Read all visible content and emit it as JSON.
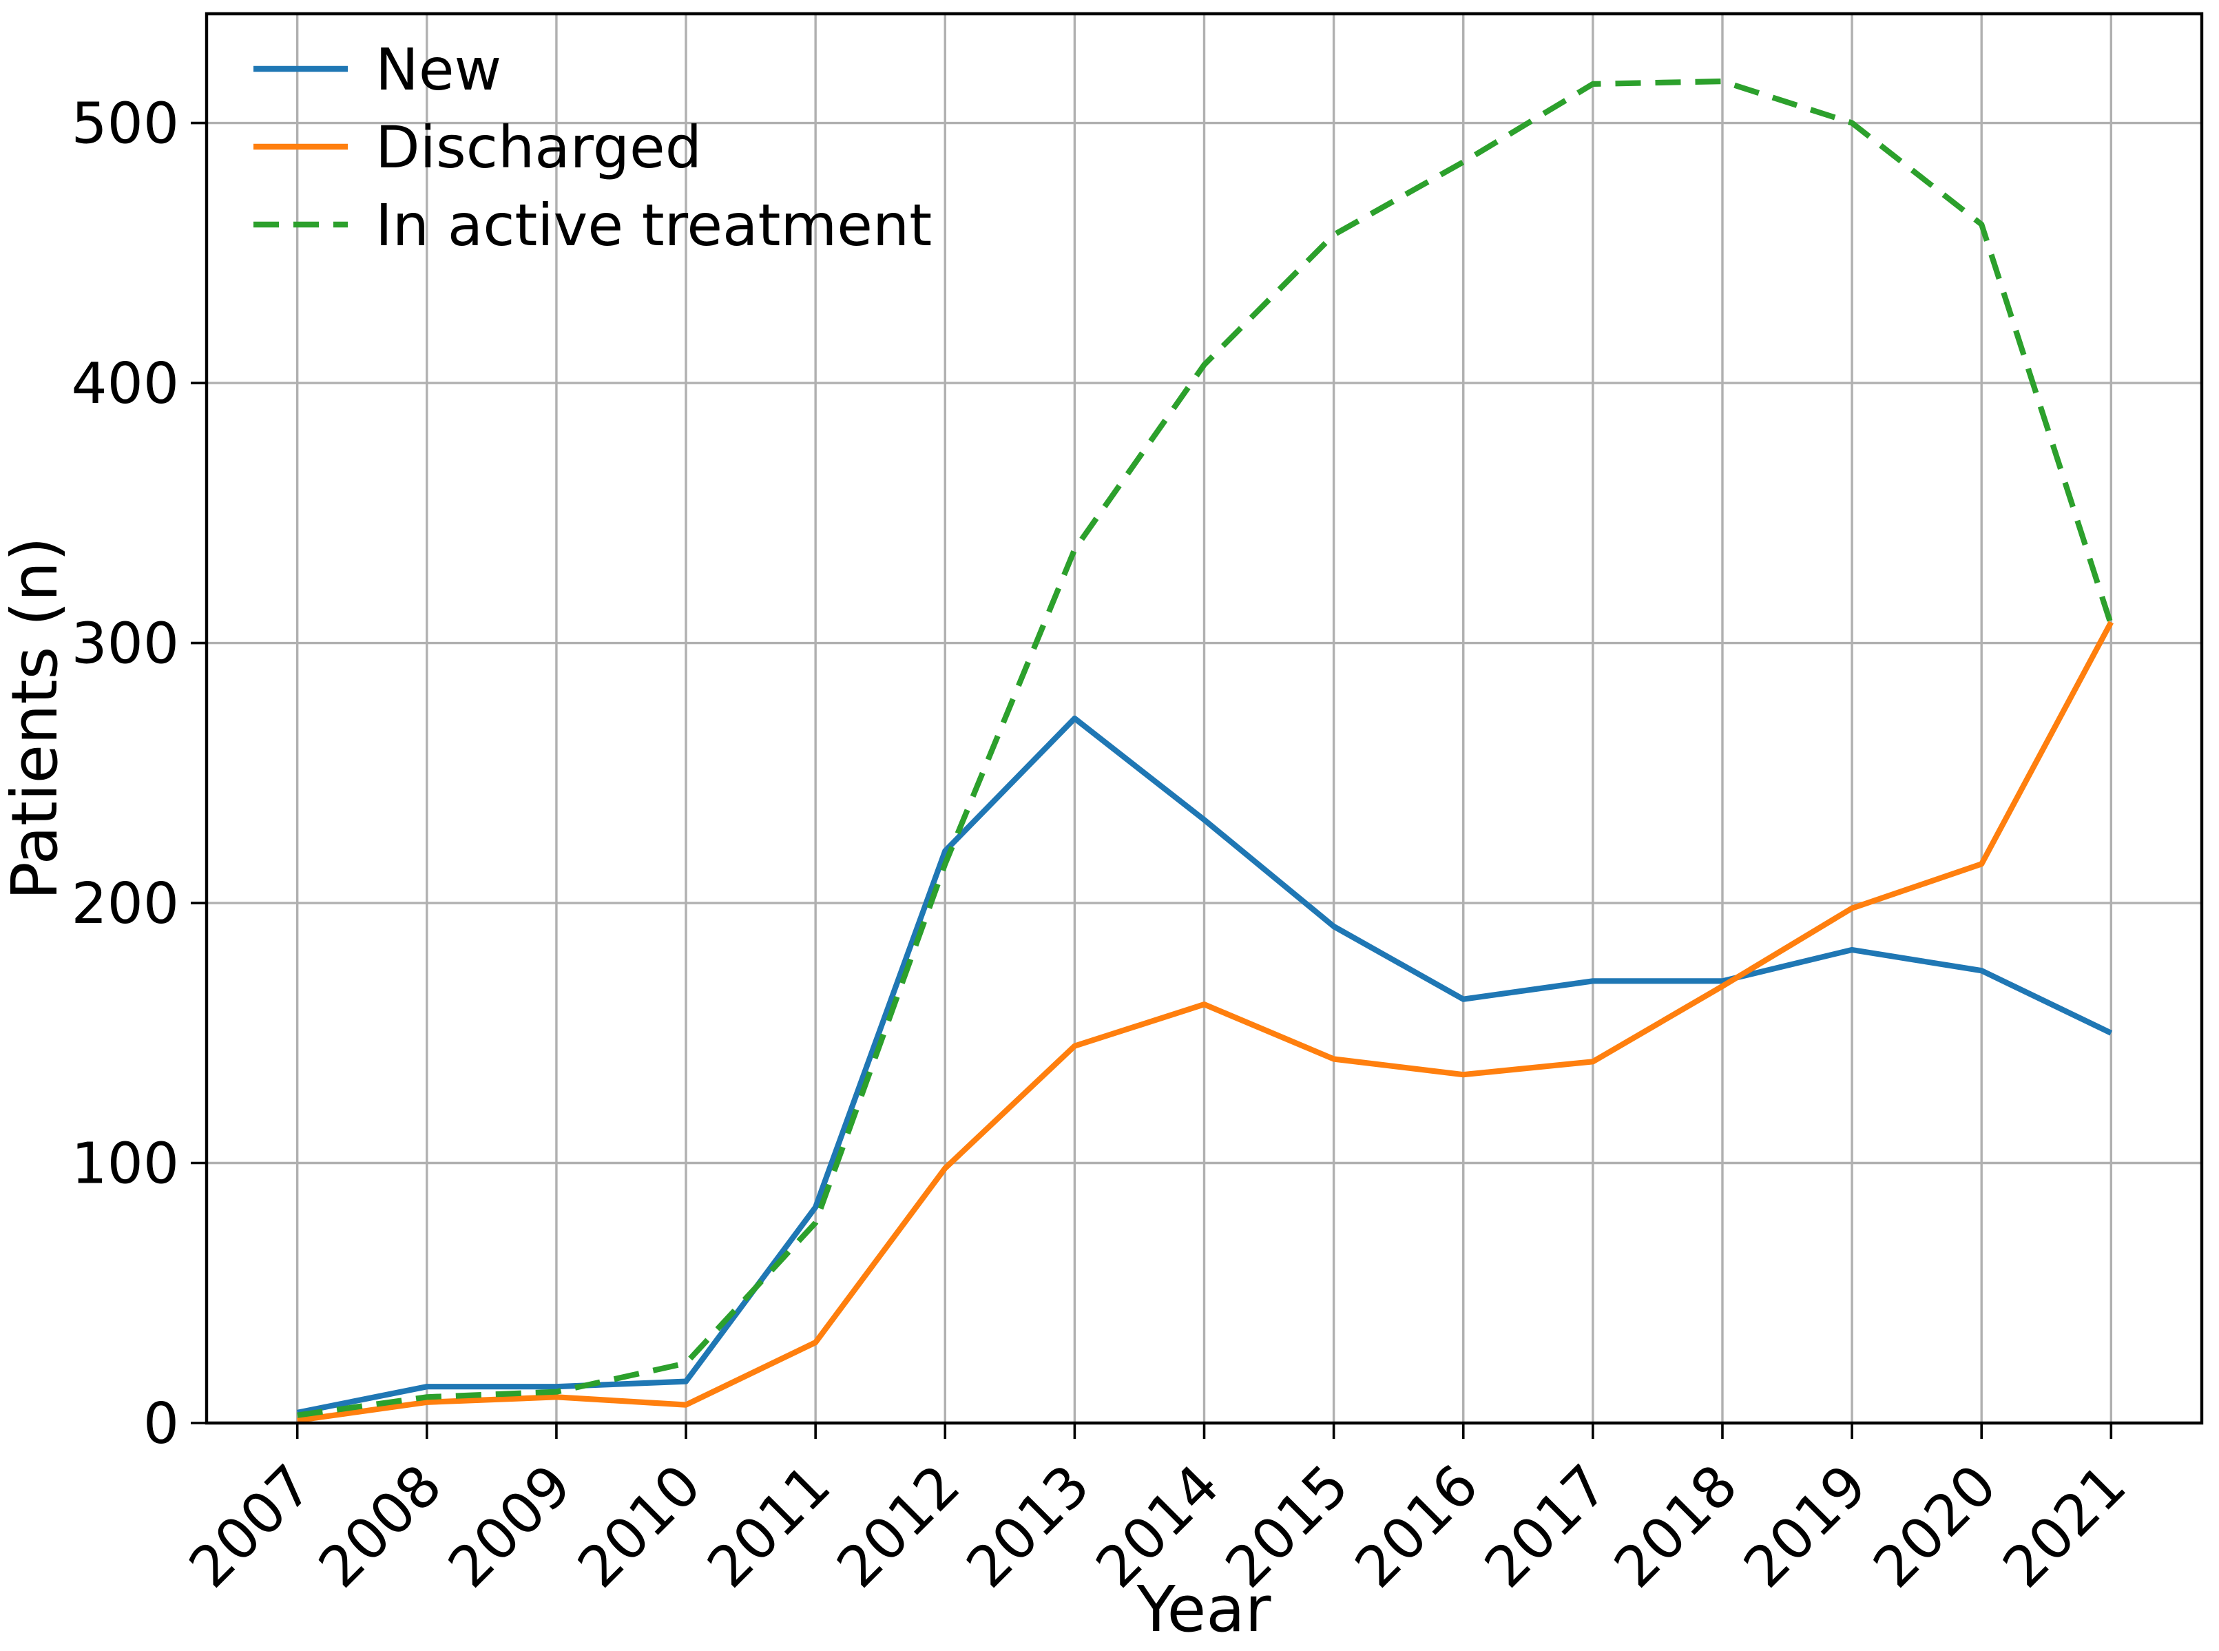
{
  "figure": {
    "background_color": "#ffffff",
    "grid_color": "#b0b0b0",
    "axis_color": "#000000"
  },
  "chart_data": {
    "type": "line",
    "title": "",
    "xlabel": "Year",
    "ylabel": "Patients (n)",
    "x": [
      2007,
      2008,
      2009,
      2010,
      2011,
      2012,
      2013,
      2014,
      2015,
      2016,
      2017,
      2018,
      2019,
      2020,
      2021
    ],
    "xtick_labels": [
      "2007",
      "2008",
      "2009",
      "2010",
      "2011",
      "2012",
      "2013",
      "2014",
      "2015",
      "2016",
      "2017",
      "2018",
      "2019",
      "2020",
      "2021"
    ],
    "yticks": [
      0,
      100,
      200,
      300,
      400,
      500
    ],
    "ytick_labels": [
      "0",
      "100",
      "200",
      "300",
      "400",
      "500"
    ],
    "xlim": [
      2006.3,
      2021.7
    ],
    "ylim": [
      0,
      542
    ],
    "grid": true,
    "legend_position": "upper left",
    "legend_frame": false,
    "xtick_rotation_deg": 45,
    "series": [
      {
        "name": "New",
        "color": "#1f77b4",
        "style": "solid",
        "values": [
          4,
          14,
          14,
          16,
          83,
          220,
          271,
          232,
          191,
          163,
          170,
          170,
          182,
          174,
          150
        ]
      },
      {
        "name": "Discharged",
        "color": "#ff7f0e",
        "style": "solid",
        "values": [
          1,
          8,
          10,
          7,
          31,
          98,
          145,
          161,
          140,
          134,
          139,
          168,
          198,
          215,
          308
        ]
      },
      {
        "name": "In active treatment",
        "color": "#2ca02c",
        "style": "dashed",
        "values": [
          3,
          10,
          12,
          23,
          77,
          215,
          336,
          407,
          457,
          485,
          515,
          516,
          500,
          461,
          307
        ]
      }
    ]
  }
}
